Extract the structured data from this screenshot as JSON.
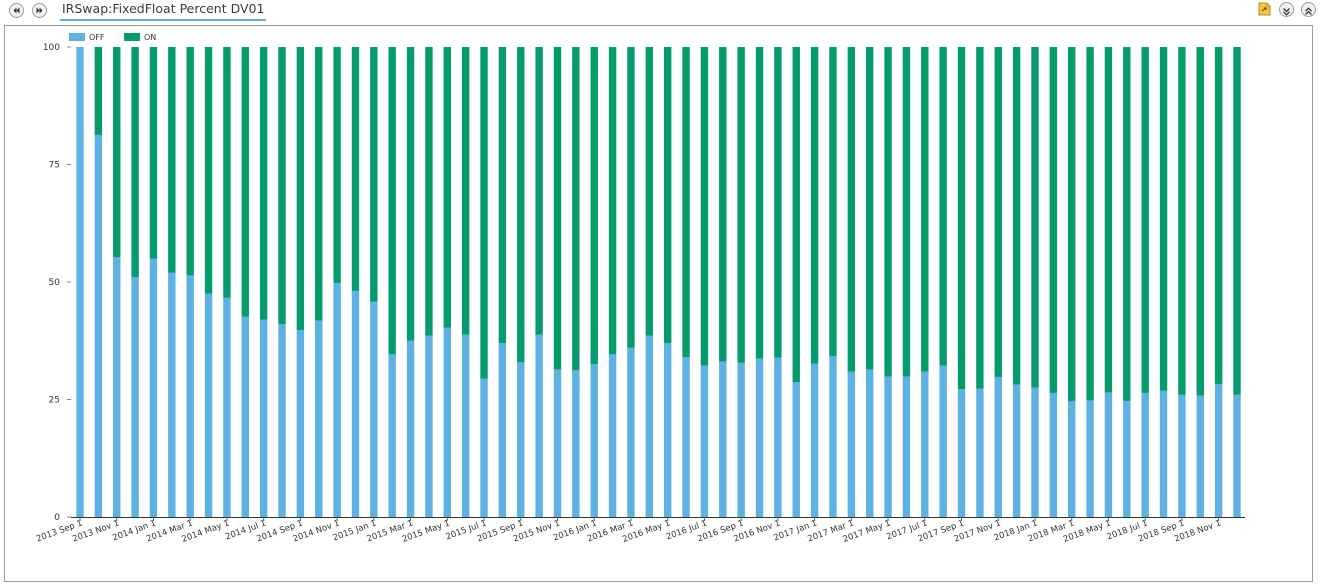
{
  "header": {
    "title": "IRSwap:FixedFloat Percent DV01"
  },
  "colors": {
    "off": "#5db1e3",
    "on": "#069b6e",
    "tab_underline": "#5aaee6"
  },
  "icons": [
    "back-icon",
    "forward-icon",
    "export-icon",
    "collapse-icon",
    "expand-icon"
  ],
  "legend": [
    {
      "label": "OFF"
    },
    {
      "label": "ON"
    }
  ],
  "chart_data": {
    "type": "bar",
    "stacked": true,
    "ylim": [
      0,
      100
    ],
    "yticks": [
      0,
      25,
      50,
      75,
      100
    ],
    "x_tick_labels": [
      "2013 Sep 1",
      "2013 Nov 1",
      "2014 Jan 1",
      "2014 Mar 1",
      "2014 May 1",
      "2014 Jul 1",
      "2014 Sep 1",
      "2014 Nov 1",
      "2015 Jan 1",
      "2015 Mar 1",
      "2015 May 1",
      "2015 Jul 1",
      "2015 Sep 1",
      "2015 Nov 1",
      "2016 Jan 1",
      "2016 Mar 1",
      "2016 May 1",
      "2016 Jul 1",
      "2016 Sep 1",
      "2016 Nov 1",
      "2017 Jan 1",
      "2017 Mar 1",
      "2017 May 1",
      "2017 Jul 1",
      "2017 Sep 1",
      "2017 Nov 1",
      "2018 Jan 1",
      "2018 Mar 1",
      "2018 May 1",
      "2018 Jul 1",
      "2018 Sep 1",
      "2018 Nov 1"
    ],
    "series": [
      {
        "name": "OFF",
        "values": [
          100,
          81.3,
          55.3,
          51,
          55,
          52,
          51.4,
          47.5,
          46.7,
          42.6,
          42,
          41,
          39.8,
          41.8,
          49.8,
          48.1,
          45.8,
          34.6,
          37.5,
          38.6,
          40.3,
          38.8,
          29.4,
          37,
          32.9,
          38.8,
          31.4,
          31.2,
          32.5,
          34.6,
          36,
          38.6,
          37,
          34,
          32.2,
          33.1,
          32.8,
          33.7,
          33.9,
          28.7,
          32.6,
          34.2,
          30.9,
          31.4,
          29.9,
          29.9,
          30.9,
          32.2,
          27.2,
          27.3,
          29.8,
          28.2,
          27.5,
          26.4,
          24.6,
          24.8,
          26.5,
          24.7,
          26.4,
          26.9,
          26,
          25.8,
          28.3,
          26
        ]
      },
      {
        "name": "ON",
        "values": [
          0,
          18.7,
          44.7,
          49,
          45,
          48,
          48.6,
          52.5,
          53.3,
          57.4,
          58,
          59,
          60.2,
          58.2,
          50.2,
          51.9,
          54.2,
          65.4,
          62.5,
          61.4,
          59.7,
          61.2,
          70.6,
          63,
          67.1,
          61.2,
          68.6,
          68.8,
          67.5,
          65.4,
          64,
          61.4,
          63,
          66,
          67.8,
          66.9,
          67.2,
          66.3,
          66.1,
          71.3,
          67.4,
          65.8,
          69.1,
          68.6,
          70.1,
          70.1,
          69.1,
          67.8,
          72.8,
          72.7,
          70.2,
          71.8,
          72.5,
          73.6,
          75.4,
          75.2,
          73.5,
          75.3,
          73.6,
          73.1,
          74,
          74.2,
          71.7,
          74
        ]
      }
    ]
  }
}
